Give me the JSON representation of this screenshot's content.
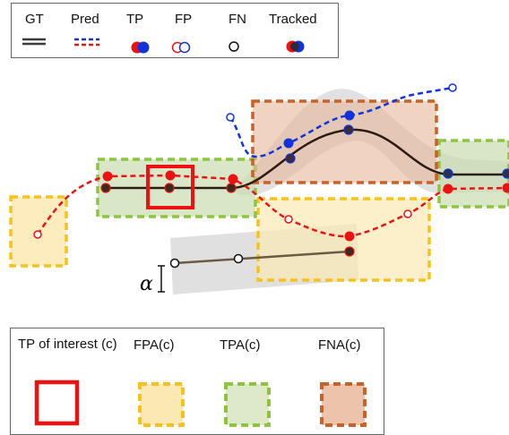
{
  "top_legend": {
    "gt": "GT",
    "pred": "Pred",
    "tp": "TP",
    "fp": "FP",
    "fn": "FN",
    "tracked": "Tracked"
  },
  "bottom_legend": {
    "tp_of_interest": "TP of interest (c)",
    "fpa": "FPA(c)",
    "tpa": "TPA(c)",
    "fna": "FNA(c)"
  },
  "diagram": {
    "alpha_label": "α"
  },
  "colors": {
    "gt_line": "#3a2415",
    "pred_red": "#ee1111",
    "pred_blue": "#1133dd",
    "tp_interest": "#ee1111",
    "fpa_border": "#f7c21c",
    "fpa_fill": "#fbe9b3",
    "tpa_border": "#8cc63f",
    "tpa_fill": "#dde9c9",
    "fna_border": "#c8612a",
    "fna_fill": "#ecc4ac"
  }
}
